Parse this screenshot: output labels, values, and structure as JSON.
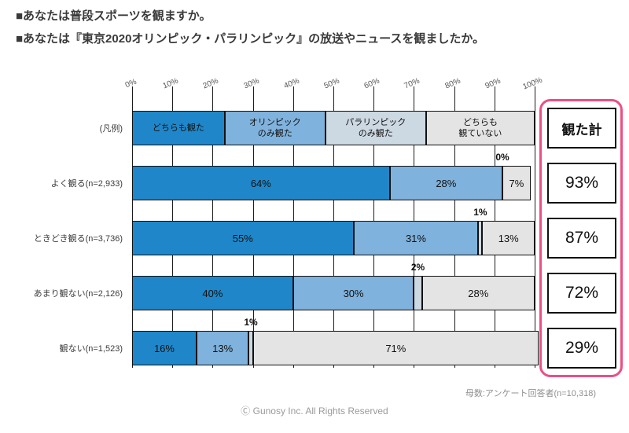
{
  "header": {
    "line1": "■あなたは普段スポーツを観ますか。",
    "line2": "■あなたは『東京2020オリンピック・パラリンピック』の放送やニュースを観ましたか。"
  },
  "chart_data": {
    "type": "bar",
    "orientation": "horizontal-stacked",
    "xlim": [
      0,
      100
    ],
    "grid": true,
    "axis_ticks": [
      "0%",
      "10%",
      "20%",
      "30%",
      "40%",
      "50%",
      "60%",
      "70%",
      "80%",
      "90%",
      "100%"
    ],
    "legend_row": {
      "row_label": "(凡例)",
      "items": [
        {
          "label": "どちらも観た",
          "width": 23,
          "color": "#1f87c9"
        },
        {
          "label": "オリンピック\nのみ観た",
          "width": 25,
          "color": "#7fb2dc"
        },
        {
          "label": "パラリンピック\nのみ観た",
          "width": 25,
          "color": "#ccd8e2"
        },
        {
          "label": "どちらも\n観ていない",
          "width": 27,
          "color": "#e4e4e4"
        }
      ]
    },
    "categories": [
      "よく観る(n=2,933)",
      "ときどき観る(n=3,736)",
      "あまり観ない(n=2,126)",
      "観ない(n=1,523)"
    ],
    "series": [
      {
        "name": "どちらも観た",
        "values": [
          64,
          55,
          40,
          16
        ],
        "color": "#1f87c9"
      },
      {
        "name": "オリンピックのみ観た",
        "values": [
          28,
          31,
          30,
          13
        ],
        "color": "#7fb2dc"
      },
      {
        "name": "パラリンピックのみ観た",
        "values": [
          0,
          1,
          2,
          1
        ],
        "color": "#ccd8e2"
      },
      {
        "name": "どちらも観ていない",
        "values": [
          7,
          13,
          28,
          71
        ],
        "color": "#e4e4e4"
      }
    ],
    "totals": {
      "header": "観た計",
      "values": [
        "93%",
        "87%",
        "72%",
        "29%"
      ],
      "accent": "#ed4f82"
    }
  },
  "footer": {
    "note": "母数:アンケート回答者(n=10,318)",
    "copyright": "Ⓒ Gunosy Inc. All Rights Reserved"
  }
}
